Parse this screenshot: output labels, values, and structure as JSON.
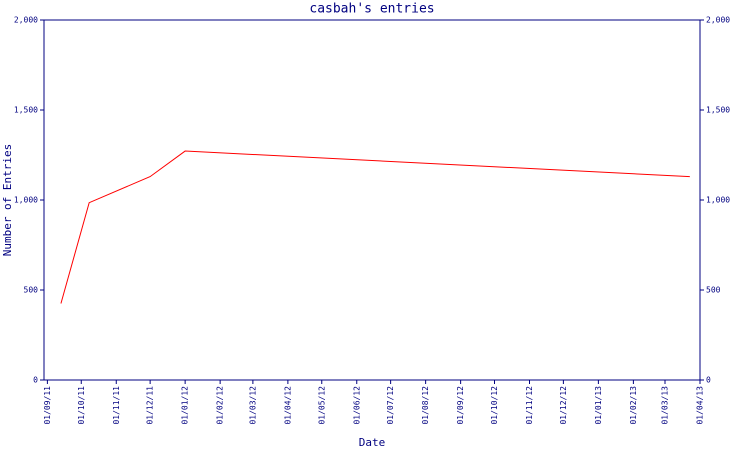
{
  "chart_data": {
    "type": "line",
    "title": "casbah's entries",
    "x_label": "Date",
    "y_label": "Number of Entries",
    "x": [
      "2011-09-13",
      "2011-10-08",
      "2011-12-01",
      "2012-01-01",
      "2013-03-23"
    ],
    "series": [
      {
        "name": "entries",
        "color": "#ff0000",
        "values": [
          425,
          985,
          1130,
          1272,
          1130
        ]
      }
    ],
    "xlim": [
      "2011-08-29",
      "2013-04-01"
    ],
    "xticks": [
      {
        "value": "2011-09-01",
        "label": "01/09/11"
      },
      {
        "value": "2011-10-01",
        "label": "01/10/11"
      },
      {
        "value": "2011-11-01",
        "label": "01/11/11"
      },
      {
        "value": "2011-12-01",
        "label": "01/12/11"
      },
      {
        "value": "2012-01-01",
        "label": "01/01/12"
      },
      {
        "value": "2012-02-01",
        "label": "01/02/12"
      },
      {
        "value": "2012-03-01",
        "label": "01/03/12"
      },
      {
        "value": "2012-04-01",
        "label": "01/04/12"
      },
      {
        "value": "2012-05-01",
        "label": "01/05/12"
      },
      {
        "value": "2012-06-01",
        "label": "01/06/12"
      },
      {
        "value": "2012-07-01",
        "label": "01/07/12"
      },
      {
        "value": "2012-08-01",
        "label": "01/08/12"
      },
      {
        "value": "2012-09-01",
        "label": "01/09/12"
      },
      {
        "value": "2012-10-01",
        "label": "01/10/12"
      },
      {
        "value": "2012-11-01",
        "label": "01/11/12"
      },
      {
        "value": "2012-12-01",
        "label": "01/12/12"
      },
      {
        "value": "2013-01-01",
        "label": "01/01/13"
      },
      {
        "value": "2013-02-01",
        "label": "01/02/13"
      },
      {
        "value": "2013-03-01",
        "label": "01/03/13"
      },
      {
        "value": "2013-04-01",
        "label": "01/04/13"
      }
    ],
    "ylim": [
      0,
      2000
    ],
    "yticks": [
      0,
      500,
      {
        "value": 1000,
        "label": "1,000"
      },
      {
        "value": 1500,
        "label": "1,500"
      },
      {
        "value": 2000,
        "label": "2,000"
      }
    ],
    "axis_color": "#000080"
  }
}
